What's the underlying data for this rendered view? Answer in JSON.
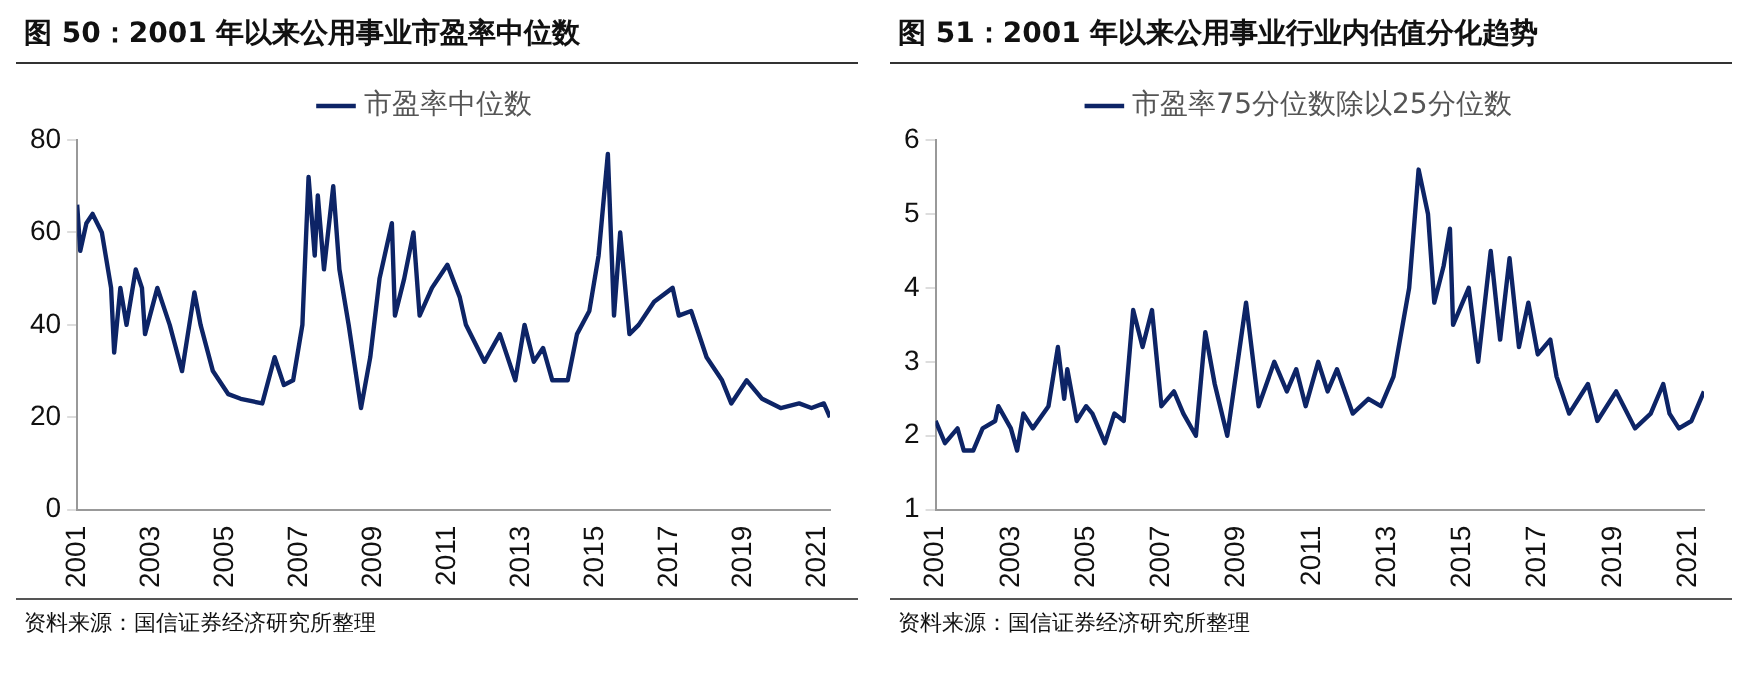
{
  "chart_data": [
    {
      "type": "line",
      "title": "图 50：2001 年以来公用事业市盈率中位数",
      "legend": "top",
      "grid": false,
      "marker": "none",
      "line_style": "solid",
      "xlim": [
        "2001-01",
        "2021-05"
      ],
      "xticks": [
        "2001",
        "2003",
        "2005",
        "2007",
        "2009",
        "2011",
        "2013",
        "2015",
        "2017",
        "2019",
        "2021"
      ],
      "ylim": [
        0,
        80
      ],
      "yticks": [
        0,
        20,
        40,
        60,
        80
      ],
      "series": [
        {
          "name": "市盈率中位数",
          "color": "#0d2466",
          "x": [
            "2001-01",
            "2001-02",
            "2001-04",
            "2001-06",
            "2001-09",
            "2001-12",
            "2002-01",
            "2002-03",
            "2002-05",
            "2002-08",
            "2002-10",
            "2002-11",
            "2003-03",
            "2003-07",
            "2003-09",
            "2003-11",
            "2004-03",
            "2004-05",
            "2004-09",
            "2005-02",
            "2005-06",
            "2006-01",
            "2006-05",
            "2006-08",
            "2006-11",
            "2007-02",
            "2007-04",
            "2007-06",
            "2007-07",
            "2007-09",
            "2007-12",
            "2008-02",
            "2008-05",
            "2008-09",
            "2008-12",
            "2009-03",
            "2009-07",
            "2009-08",
            "2009-11",
            "2010-02",
            "2010-04",
            "2010-08",
            "2011-01",
            "2011-05",
            "2011-07",
            "2012-01",
            "2012-06",
            "2012-11",
            "2013-02",
            "2013-05",
            "2013-08",
            "2013-11",
            "2014-04",
            "2014-07",
            "2014-11",
            "2015-02",
            "2015-05",
            "2015-07",
            "2015-09",
            "2015-12",
            "2016-03",
            "2016-08",
            "2017-02",
            "2017-04",
            "2017-08",
            "2018-01",
            "2018-06",
            "2018-09",
            "2019-02",
            "2019-07",
            "2020-01",
            "2020-07",
            "2020-11",
            "2021-03",
            "2021-05"
          ],
          "values": [
            66,
            56,
            62,
            64,
            60,
            48,
            34,
            48,
            40,
            52,
            48,
            38,
            48,
            40,
            35,
            30,
            47,
            40,
            30,
            25,
            24,
            23,
            33,
            27,
            28,
            40,
            72,
            55,
            68,
            52,
            70,
            52,
            40,
            22,
            33,
            50,
            62,
            42,
            50,
            60,
            42,
            48,
            53,
            46,
            40,
            32,
            38,
            28,
            40,
            32,
            35,
            28,
            28,
            38,
            43,
            55,
            77,
            42,
            60,
            38,
            40,
            45,
            48,
            42,
            43,
            33,
            28,
            23,
            28,
            24,
            22,
            23,
            22,
            23,
            20
          ]
        }
      ],
      "annotations": [
        "资料来源：国信证券经济研究所整理"
      ]
    },
    {
      "type": "line",
      "title": "图 51：2001 年以来公用事业行业内估值分化趋势",
      "legend": "top",
      "grid": false,
      "marker": "none",
      "line_style": "solid",
      "xlim": [
        "2001-01",
        "2021-06"
      ],
      "xticks": [
        "2001",
        "2003",
        "2005",
        "2007",
        "2009",
        "2011",
        "2013",
        "2015",
        "2017",
        "2019",
        "2021"
      ],
      "ylim": [
        1,
        6
      ],
      "yticks": [
        1,
        2,
        3,
        4,
        5,
        6
      ],
      "series": [
        {
          "name": "市盈率75分位数除以25分位数",
          "color": "#0d2466",
          "x": [
            "2001-01",
            "2001-04",
            "2001-08",
            "2001-10",
            "2002-01",
            "2002-04",
            "2002-08",
            "2002-09",
            "2003-01",
            "2003-03",
            "2003-05",
            "2003-08",
            "2004-01",
            "2004-04",
            "2004-06",
            "2004-07",
            "2004-10",
            "2005-01",
            "2005-03",
            "2005-07",
            "2005-10",
            "2006-01",
            "2006-04",
            "2006-07",
            "2006-10",
            "2007-01",
            "2007-05",
            "2007-08",
            "2007-12",
            "2008-03",
            "2008-06",
            "2008-10",
            "2009-01",
            "2009-04",
            "2009-08",
            "2010-01",
            "2010-05",
            "2010-08",
            "2010-11",
            "2011-03",
            "2011-06",
            "2011-09",
            "2012-02",
            "2012-07",
            "2012-11",
            "2013-03",
            "2013-08",
            "2013-11",
            "2014-02",
            "2014-04",
            "2014-07",
            "2014-09",
            "2014-10",
            "2015-03",
            "2015-06",
            "2015-10",
            "2016-01",
            "2016-04",
            "2016-07",
            "2016-10",
            "2017-01",
            "2017-05",
            "2017-07",
            "2017-11",
            "2018-05",
            "2018-08",
            "2019-02",
            "2019-08",
            "2020-01",
            "2020-05",
            "2020-07",
            "2020-10",
            "2021-02",
            "2021-06"
          ],
          "values": [
            2.2,
            1.9,
            2.1,
            1.8,
            1.8,
            2.1,
            2.2,
            2.4,
            2.1,
            1.8,
            2.3,
            2.1,
            2.4,
            3.2,
            2.5,
            2.9,
            2.2,
            2.4,
            2.3,
            1.9,
            2.3,
            2.2,
            3.7,
            3.2,
            3.7,
            2.4,
            2.6,
            2.3,
            2.0,
            3.4,
            2.7,
            2.0,
            2.9,
            3.8,
            2.4,
            3.0,
            2.6,
            2.9,
            2.4,
            3.0,
            2.6,
            2.9,
            2.3,
            2.5,
            2.4,
            2.8,
            4.0,
            5.6,
            5.0,
            3.8,
            4.3,
            4.8,
            3.5,
            4.0,
            3.0,
            4.5,
            3.3,
            4.4,
            3.2,
            3.8,
            3.1,
            3.3,
            2.8,
            2.3,
            2.7,
            2.2,
            2.6,
            2.1,
            2.3,
            2.7,
            2.3,
            2.1,
            2.2,
            2.6
          ]
        }
      ],
      "annotations": [
        "资料来源：国信证券经济研究所整理"
      ]
    }
  ]
}
